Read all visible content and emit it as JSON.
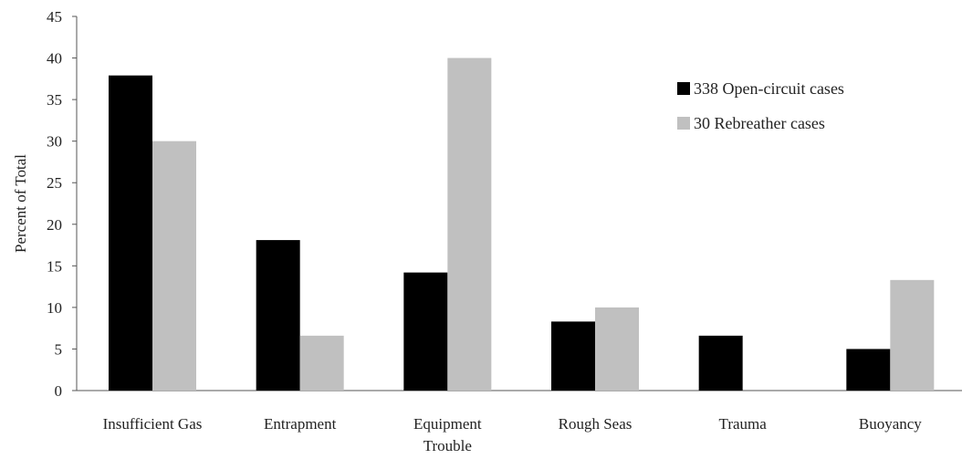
{
  "chart_data": {
    "type": "bar",
    "title": "",
    "xlabel": "",
    "ylabel": "Percent of Total",
    "ylim": [
      0,
      45
    ],
    "yticks": [
      0,
      5,
      10,
      15,
      20,
      25,
      30,
      35,
      40,
      45
    ],
    "grid": false,
    "legend_position": "top-right",
    "categories": [
      [
        "Insufficient Gas"
      ],
      [
        "Entrapment"
      ],
      [
        "Equipment",
        "Trouble"
      ],
      [
        "Rough Seas"
      ],
      [
        "Trauma"
      ],
      [
        "Buoyancy"
      ]
    ],
    "series": [
      {
        "name": "338 Open-circuit cases",
        "color": "#000000",
        "values": [
          37.9,
          18.1,
          14.2,
          8.3,
          6.6,
          5.0
        ]
      },
      {
        "name": "30 Rebreather cases",
        "color": "#c0c0c0",
        "values": [
          30.0,
          6.6,
          40.0,
          10.0,
          0,
          13.3
        ]
      }
    ]
  }
}
